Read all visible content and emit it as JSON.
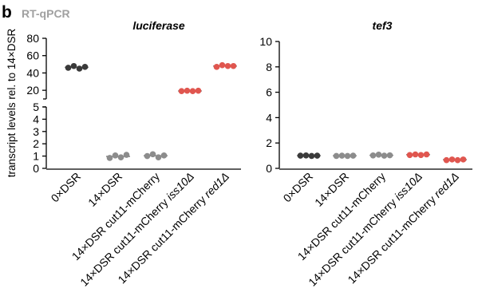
{
  "panel_label": "b",
  "panel_subtitle": "RT-qPCR",
  "colors": {
    "black": "#3a3a3a",
    "gray": "#8c8c8c",
    "red": "#e0564f",
    "mean_line": "#8c8c8c"
  },
  "chart_data": [
    {
      "type": "scatter",
      "title": "luciferase",
      "ylabel": "transcript levels rel. to 14×DSR",
      "y_axis_broken": true,
      "y_segments": [
        {
          "range": [
            0,
            5
          ],
          "ticks": [
            "0",
            "1",
            "2",
            "3",
            "4",
            "5"
          ]
        },
        {
          "range": [
            10,
            80
          ],
          "ticks": [
            "20",
            "40",
            "60",
            "80"
          ]
        }
      ],
      "categories": [
        {
          "label": "0×DSR",
          "italic": ""
        },
        {
          "label": "14×DSR",
          "italic": ""
        },
        {
          "label": "14×DSR cut11-mCherry",
          "italic": ""
        },
        {
          "label": "14×DSR cut11-mCherry ",
          "italic": "iss10Δ"
        },
        {
          "label": "14×DSR cut11-mCherry ",
          "italic": "red1Δ"
        }
      ],
      "point_colors": [
        "black",
        "gray",
        "gray",
        "red",
        "red"
      ],
      "series": [
        {
          "values": [
            [
              46,
              48,
              45,
              47
            ],
            [
              0.85,
              1.05,
              0.9,
              1.1
            ],
            [
              1.0,
              1.15,
              0.9,
              1.05
            ],
            [
              19,
              19.5,
              19,
              19.5
            ],
            [
              47,
              49,
              48,
              48
            ]
          ]
        }
      ],
      "means": [
        46.5,
        0.97,
        1.03,
        19.2,
        48.0
      ]
    },
    {
      "type": "scatter",
      "title": "tef3",
      "ylabel": "",
      "y_axis_broken": false,
      "ylim": [
        0,
        10
      ],
      "yticks": [
        "0",
        "2",
        "4",
        "6",
        "8",
        "10"
      ],
      "categories": [
        {
          "label": "0×DSR",
          "italic": ""
        },
        {
          "label": "14×DSR",
          "italic": ""
        },
        {
          "label": "14×DSR cut11-mCherry",
          "italic": ""
        },
        {
          "label": "14×DSR cut11-mCherry ",
          "italic": "iss10Δ"
        },
        {
          "label": "14×DSR cut11-mCherry ",
          "italic": "red1Δ"
        }
      ],
      "point_colors": [
        "black",
        "gray",
        "gray",
        "red",
        "red"
      ],
      "series": [
        {
          "values": [
            [
              1.0,
              1.02,
              0.98,
              1.0
            ],
            [
              0.98,
              1.0,
              0.98,
              1.0
            ],
            [
              1.02,
              1.08,
              1.0,
              1.03
            ],
            [
              1.05,
              1.1,
              1.05,
              1.1
            ],
            [
              0.65,
              0.7,
              0.65,
              0.7
            ]
          ]
        }
      ],
      "means": [
        1.0,
        0.99,
        1.03,
        1.08,
        0.68
      ]
    }
  ]
}
